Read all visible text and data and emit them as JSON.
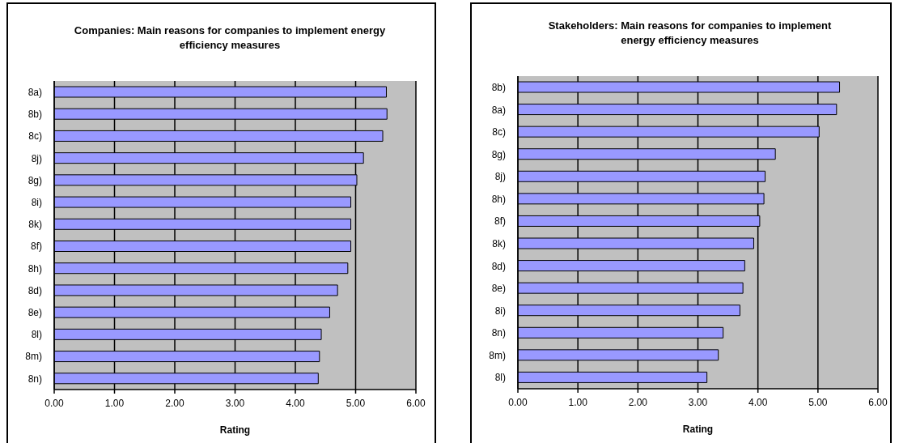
{
  "chart_data": [
    {
      "type": "bar",
      "orientation": "horizontal",
      "title": "Companies: Main reasons for companies to implement energy efficiency measures",
      "xlabel": "Rating",
      "categories": [
        "8a)",
        "8b)",
        "8c)",
        "8j)",
        "8g)",
        "8i)",
        "8k)",
        "8f)",
        "8h)",
        "8d)",
        "8e)",
        "8l)",
        "8m)",
        "8n)"
      ],
      "values": [
        5.51,
        5.52,
        5.45,
        5.13,
        5.02,
        4.92,
        4.92,
        4.92,
        4.87,
        4.7,
        4.57,
        4.43,
        4.4,
        4.38
      ],
      "color": "#9999ff",
      "xlim": [
        0,
        6
      ],
      "xticks": [
        {
          "value": 0,
          "label": "0.00"
        },
        {
          "value": 1,
          "label": "1.00"
        },
        {
          "value": 2,
          "label": "2.00"
        },
        {
          "value": 3,
          "label": "3.00"
        },
        {
          "value": 4,
          "label": "4.00"
        },
        {
          "value": 5,
          "label": "5.00"
        },
        {
          "value": 6,
          "label": "6.00"
        }
      ],
      "grid": "x"
    },
    {
      "type": "bar",
      "orientation": "horizontal",
      "title": "Stakeholders: Main reasons for companies to implement energy efficiency measures",
      "xlabel": "Rating",
      "categories": [
        "8b)",
        "8a)",
        "8c)",
        "8g)",
        "8j)",
        "8h)",
        "8f)",
        "8k)",
        "8d)",
        "8e)",
        "8i)",
        "8n)",
        "8m)",
        "8l)"
      ],
      "values": [
        5.36,
        5.31,
        5.02,
        4.29,
        4.12,
        4.1,
        4.03,
        3.93,
        3.78,
        3.75,
        3.7,
        3.42,
        3.34,
        3.15
      ],
      "color": "#9999ff",
      "xlim": [
        0,
        6
      ],
      "xticks": [
        {
          "value": 0,
          "label": "0.00"
        },
        {
          "value": 1,
          "label": "1.00"
        },
        {
          "value": 2,
          "label": "2.00"
        },
        {
          "value": 3,
          "label": "3.00"
        },
        {
          "value": 4,
          "label": "4.00"
        },
        {
          "value": 5,
          "label": "5.00"
        },
        {
          "value": 6,
          "label": "6.00"
        }
      ],
      "grid": "x"
    }
  ]
}
